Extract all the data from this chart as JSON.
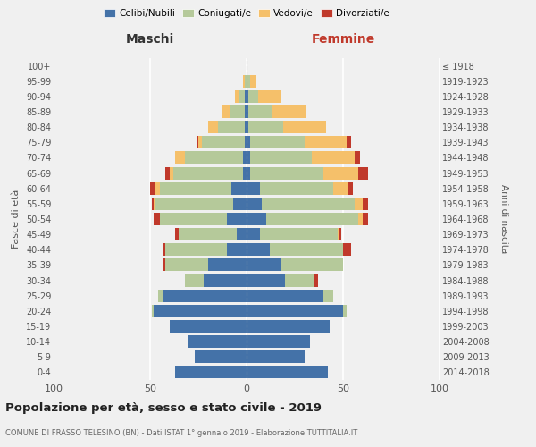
{
  "age_groups": [
    "0-4",
    "5-9",
    "10-14",
    "15-19",
    "20-24",
    "25-29",
    "30-34",
    "35-39",
    "40-44",
    "45-49",
    "50-54",
    "55-59",
    "60-64",
    "65-69",
    "70-74",
    "75-79",
    "80-84",
    "85-89",
    "90-94",
    "95-99",
    "100+"
  ],
  "birth_years": [
    "2014-2018",
    "2009-2013",
    "2004-2008",
    "1999-2003",
    "1994-1998",
    "1989-1993",
    "1984-1988",
    "1979-1983",
    "1974-1978",
    "1969-1973",
    "1964-1968",
    "1959-1963",
    "1954-1958",
    "1949-1953",
    "1944-1948",
    "1939-1943",
    "1934-1938",
    "1929-1933",
    "1924-1928",
    "1919-1923",
    "≤ 1918"
  ],
  "maschi": {
    "celibe": [
      37,
      27,
      30,
      40,
      48,
      43,
      22,
      20,
      10,
      5,
      10,
      7,
      8,
      2,
      2,
      1,
      1,
      1,
      1,
      0,
      0
    ],
    "coniugato": [
      0,
      0,
      0,
      0,
      1,
      3,
      10,
      22,
      32,
      30,
      35,
      40,
      37,
      36,
      30,
      22,
      14,
      8,
      3,
      1,
      0
    ],
    "vedovo": [
      0,
      0,
      0,
      0,
      0,
      0,
      0,
      0,
      0,
      0,
      0,
      1,
      2,
      2,
      5,
      2,
      5,
      4,
      2,
      1,
      0
    ],
    "divorziato": [
      0,
      0,
      0,
      0,
      0,
      0,
      0,
      1,
      1,
      2,
      3,
      1,
      3,
      2,
      0,
      1,
      0,
      0,
      0,
      0,
      0
    ]
  },
  "femmine": {
    "nubile": [
      42,
      30,
      33,
      43,
      50,
      40,
      20,
      18,
      12,
      7,
      10,
      8,
      7,
      2,
      2,
      2,
      1,
      1,
      1,
      0,
      0
    ],
    "coniugata": [
      0,
      0,
      0,
      0,
      2,
      5,
      15,
      32,
      38,
      40,
      48,
      48,
      38,
      38,
      32,
      28,
      18,
      12,
      5,
      2,
      0
    ],
    "vedova": [
      0,
      0,
      0,
      0,
      0,
      0,
      0,
      0,
      0,
      1,
      2,
      4,
      8,
      18,
      22,
      22,
      22,
      18,
      12,
      3,
      0
    ],
    "divorziata": [
      0,
      0,
      0,
      0,
      0,
      0,
      2,
      0,
      4,
      1,
      3,
      3,
      2,
      5,
      3,
      2,
      0,
      0,
      0,
      0,
      0
    ]
  },
  "colors": {
    "celibe": "#4472a8",
    "coniugato": "#b5c99a",
    "vedovo": "#f5c06a",
    "divorziato": "#c0392b"
  },
  "title": "Popolazione per età, sesso e stato civile - 2019",
  "subtitle": "COMUNE DI FRASSO TELESINO (BN) - Dati ISTAT 1° gennaio 2019 - Elaborazione TUTTITALIA.IT",
  "xlabel_left": "Maschi",
  "xlabel_right": "Femmine",
  "ylabel_left": "Fasce di età",
  "ylabel_right": "Anni di nascita",
  "xlim": 100,
  "background_color": "#f0f0f0",
  "legend_labels": [
    "Celibi/Nubili",
    "Coniugati/e",
    "Vedovi/e",
    "Divorziati/e"
  ]
}
